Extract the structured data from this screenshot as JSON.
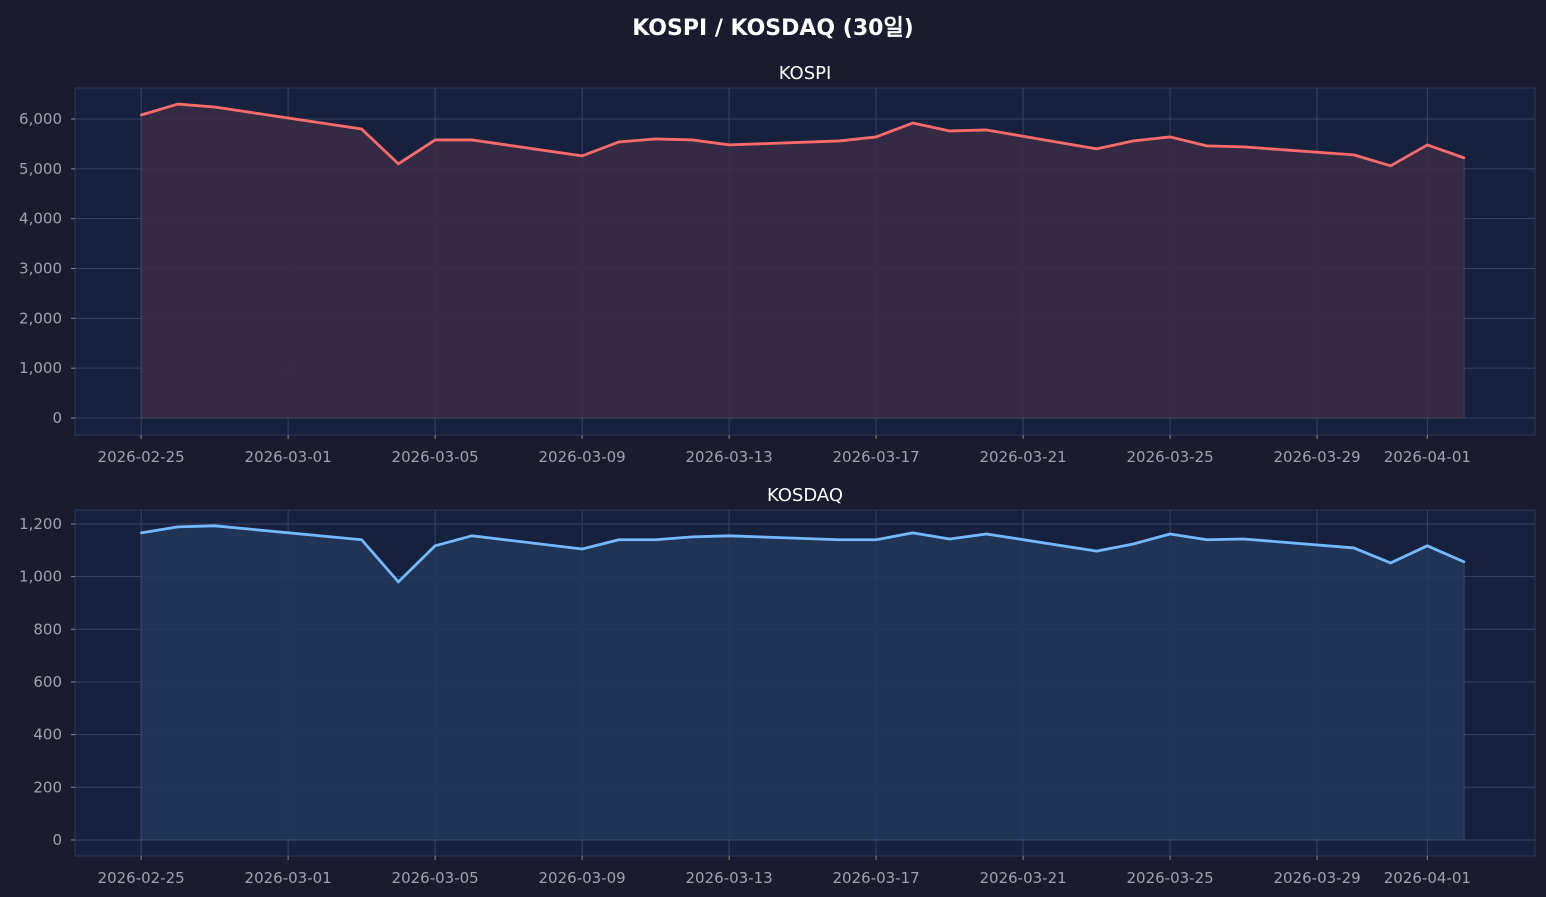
{
  "title": "KOSPI / KOSDAQ (30일)",
  "chart_data": [
    {
      "type": "area",
      "title": "KOSPI",
      "color": "#ff6b6b",
      "fill": "#3a2c44",
      "x": [
        "2026-02-25",
        "2026-02-26",
        "2026-02-27",
        "2026-03-03",
        "2026-03-04",
        "2026-03-05",
        "2026-03-06",
        "2026-03-09",
        "2026-03-10",
        "2026-03-11",
        "2026-03-12",
        "2026-03-13",
        "2026-03-16",
        "2026-03-17",
        "2026-03-18",
        "2026-03-19",
        "2026-03-20",
        "2026-03-23",
        "2026-03-24",
        "2026-03-25",
        "2026-03-26",
        "2026-03-27",
        "2026-03-30",
        "2026-03-31",
        "2026-04-01",
        "2026-04-02"
      ],
      "values": [
        6080,
        6300,
        6240,
        5800,
        5100,
        5580,
        5580,
        5260,
        5540,
        5600,
        5580,
        5480,
        5560,
        5640,
        5920,
        5760,
        5780,
        5400,
        5560,
        5640,
        5460,
        5440,
        5280,
        5060,
        5480,
        5220
      ],
      "yticks": [
        0,
        1000,
        2000,
        3000,
        4000,
        5000,
        6000
      ],
      "ytick_labels": [
        "0",
        "1,000",
        "2,000",
        "3,000",
        "4,000",
        "5,000",
        "6,000"
      ],
      "ylim": [
        -341,
        6622
      ],
      "xticks": [
        "2026-02-25",
        "2026-03-01",
        "2026-03-05",
        "2026-03-09",
        "2026-03-13",
        "2026-03-17",
        "2026-03-21",
        "2026-03-25",
        "2026-03-29",
        "2026-04-01"
      ],
      "grid": true
    },
    {
      "type": "area",
      "title": "KOSDAQ",
      "color": "#74b9ff",
      "fill": "#22375a",
      "x": [
        "2026-02-25",
        "2026-02-26",
        "2026-02-27",
        "2026-03-03",
        "2026-03-04",
        "2026-03-05",
        "2026-03-06",
        "2026-03-09",
        "2026-03-10",
        "2026-03-11",
        "2026-03-12",
        "2026-03-13",
        "2026-03-16",
        "2026-03-17",
        "2026-03-18",
        "2026-03-19",
        "2026-03-20",
        "2026-03-23",
        "2026-03-24",
        "2026-03-25",
        "2026-03-26",
        "2026-03-27",
        "2026-03-30",
        "2026-03-31",
        "2026-04-01",
        "2026-04-02"
      ],
      "values": [
        1166,
        1189,
        1193,
        1140,
        980,
        1117,
        1155,
        1105,
        1140,
        1140,
        1151,
        1155,
        1140,
        1140,
        1166,
        1143,
        1162,
        1097,
        1124,
        1162,
        1140,
        1143,
        1109,
        1052,
        1117,
        1056
      ],
      "yticks": [
        0,
        200,
        400,
        600,
        800,
        1000,
        1200
      ],
      "ytick_labels": [
        "0",
        "200",
        "400",
        "600",
        "800",
        "1,000",
        "1,200"
      ],
      "ylim": [
        -61,
        1253
      ],
      "xticks": [
        "2026-02-25",
        "2026-03-01",
        "2026-03-05",
        "2026-03-09",
        "2026-03-13",
        "2026-03-17",
        "2026-03-21",
        "2026-03-25",
        "2026-03-29",
        "2026-04-01"
      ],
      "grid": true
    }
  ]
}
